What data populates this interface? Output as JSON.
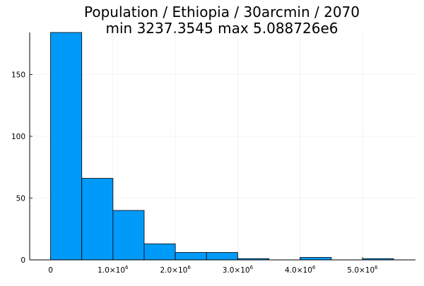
{
  "chart_data": {
    "type": "bar",
    "title_lines": [
      "Population / Ethiopia / 30arcmin / 2070",
      "min 3237.3545  max 5.088726e6"
    ],
    "xlabel": "",
    "ylabel": "",
    "bin_width": 500000,
    "bins": [
      {
        "start": 0,
        "end": 500000,
        "count": 184
      },
      {
        "start": 500000,
        "end": 1000000,
        "count": 66
      },
      {
        "start": 1000000,
        "end": 1500000,
        "count": 40
      },
      {
        "start": 1500000,
        "end": 2000000,
        "count": 13
      },
      {
        "start": 2000000,
        "end": 2500000,
        "count": 6
      },
      {
        "start": 2500000,
        "end": 3000000,
        "count": 6
      },
      {
        "start": 3000000,
        "end": 3500000,
        "count": 1
      },
      {
        "start": 3500000,
        "end": 4000000,
        "count": 0
      },
      {
        "start": 4000000,
        "end": 4500000,
        "count": 2
      },
      {
        "start": 4500000,
        "end": 5000000,
        "count": 0
      },
      {
        "start": 5000000,
        "end": 5500000,
        "count": 1
      }
    ],
    "xlim": [
      -335000,
      5850000
    ],
    "ylim": [
      0,
      184
    ],
    "x_ticks": [
      {
        "value": 0,
        "mantissa": "0",
        "exponent": ""
      },
      {
        "value": 1000000,
        "mantissa": "1.0×10",
        "exponent": "6"
      },
      {
        "value": 2000000,
        "mantissa": "2.0×10",
        "exponent": "6"
      },
      {
        "value": 3000000,
        "mantissa": "3.0×10",
        "exponent": "6"
      },
      {
        "value": 4000000,
        "mantissa": "4.0×10",
        "exponent": "6"
      },
      {
        "value": 5000000,
        "mantissa": "5.0×10",
        "exponent": "6"
      }
    ],
    "y_ticks": [
      {
        "value": 0,
        "label": "0"
      },
      {
        "value": 50,
        "label": "50"
      },
      {
        "value": 100,
        "label": "100"
      },
      {
        "value": 150,
        "label": "150"
      }
    ],
    "grid": true,
    "legend": "none",
    "bar_color": "#009af9",
    "bar_edge_color": "#000000",
    "grid_color": "#ebebeb"
  }
}
